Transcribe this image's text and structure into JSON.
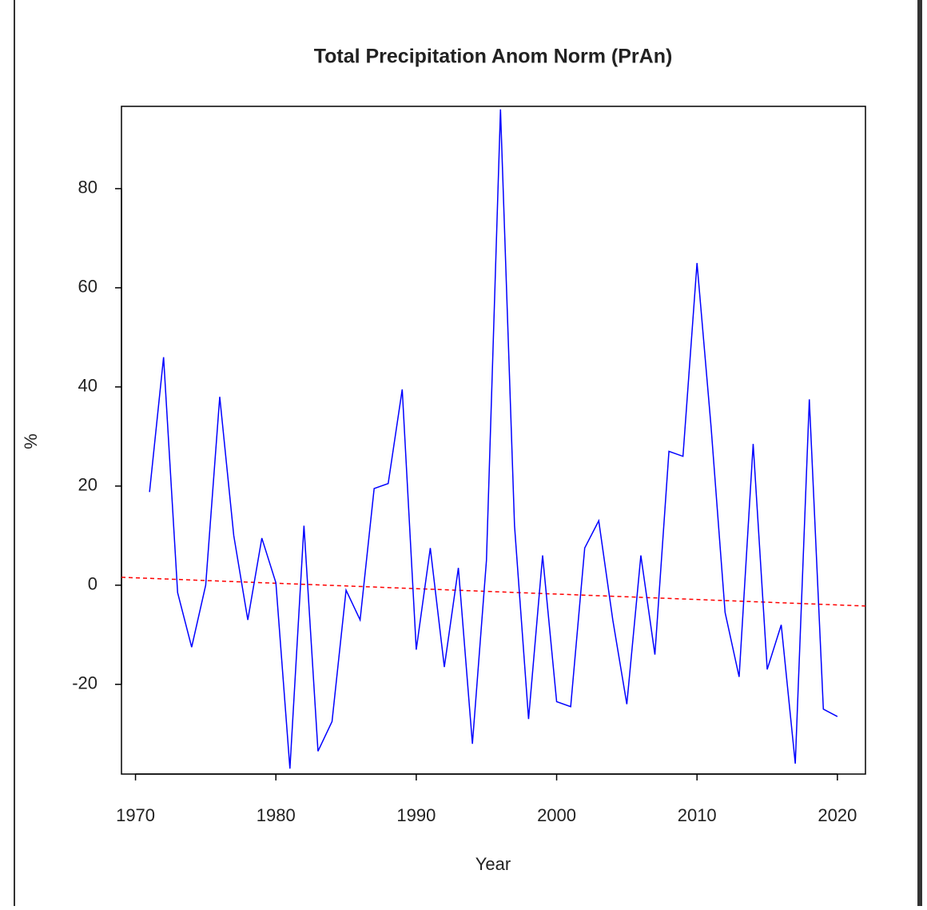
{
  "chart_data": {
    "type": "line",
    "title": "Total Precipitation Anom Norm (PrAn)",
    "x_label": "Year",
    "y_label": "%",
    "x": [
      1971,
      1972,
      1973,
      1974,
      1975,
      1976,
      1977,
      1978,
      1979,
      1980,
      1981,
      1982,
      1983,
      1984,
      1985,
      1986,
      1987,
      1988,
      1989,
      1990,
      1991,
      1992,
      1993,
      1994,
      1995,
      1996,
      1997,
      1998,
      1999,
      2000,
      2001,
      2002,
      2003,
      2004,
      2005,
      2006,
      2007,
      2008,
      2009,
      2010,
      2011,
      2012,
      2013,
      2014,
      2015,
      2016,
      2017,
      2018,
      2019,
      2020
    ],
    "values": [
      18.8,
      46,
      -1.5,
      -12.5,
      0,
      38,
      10,
      -7,
      9.5,
      0.5,
      -37,
      12,
      -33.5,
      -27.5,
      -1,
      -7,
      19.5,
      20.5,
      39.5,
      -13,
      7.5,
      -16.5,
      3.5,
      -32,
      5,
      96,
      12,
      -27,
      6,
      -23.5,
      -24.5,
      7.5,
      13,
      -7,
      -24,
      6,
      -14,
      27,
      26,
      65,
      32,
      -5.5,
      -18.5,
      28.5,
      -17,
      -8,
      -36,
      37.5,
      -25,
      -26.5
    ],
    "color": "#0000ff",
    "trend": {
      "x": [
        1969,
        2022
      ],
      "values": [
        1.6,
        -4.2
      ],
      "color": "#ff0000"
    },
    "xlim": [
      1969,
      2022
    ],
    "ylim": [
      -38.1,
      96.6
    ],
    "xticks": [
      1970,
      1980,
      1990,
      2000,
      2010,
      2020
    ],
    "yticks": [
      -20,
      0,
      20,
      40,
      60,
      80
    ]
  }
}
